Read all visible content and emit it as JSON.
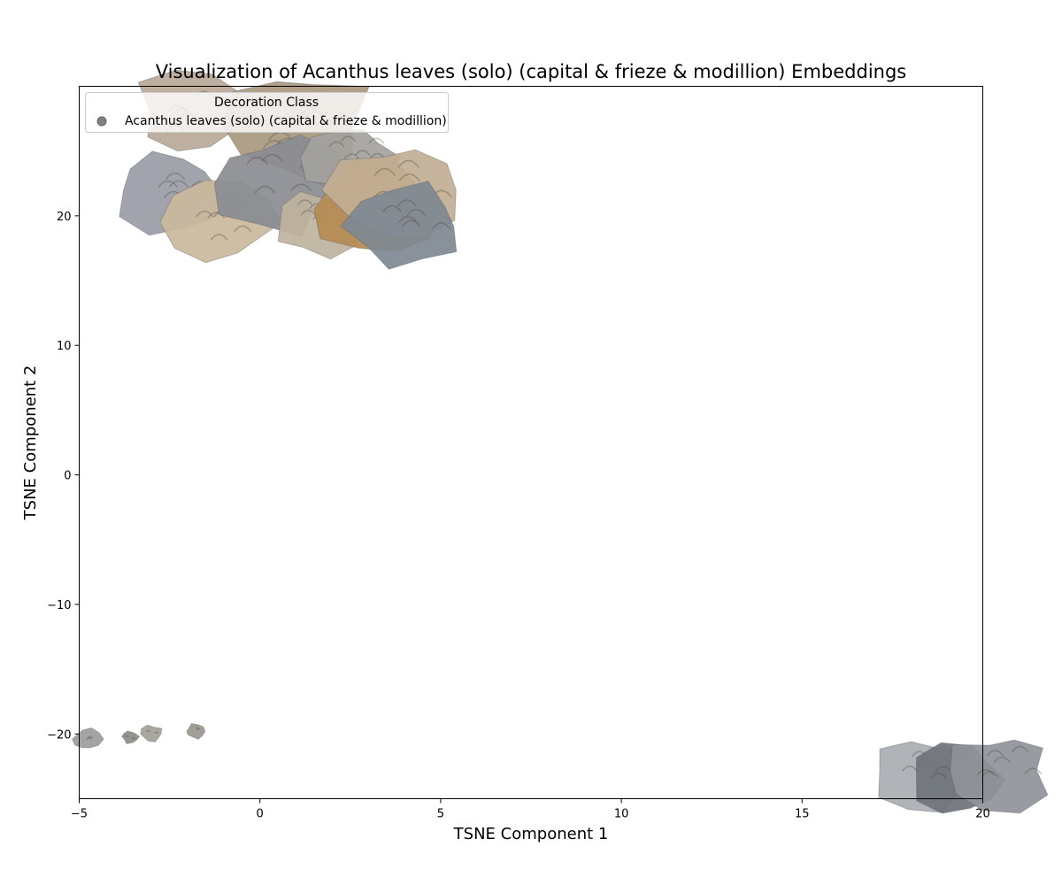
{
  "chart_data": {
    "type": "scatter",
    "title": "Visualization of Acanthus leaves (solo) (capital & frieze & modillion) Embeddings",
    "xlabel": "TSNE Component 1",
    "ylabel": "TSNE Component 2",
    "xlim": [
      -5,
      20
    ],
    "ylim": [
      -25,
      30
    ],
    "xticks": [
      -5,
      0,
      5,
      10,
      15,
      20
    ],
    "xtick_labels": [
      "−5",
      "0",
      "5",
      "10",
      "15",
      "20"
    ],
    "yticks": [
      -20,
      -10,
      0,
      10,
      20
    ],
    "ytick_labels": [
      "−20",
      "−10",
      "0",
      "10",
      "20"
    ],
    "grid": false,
    "legend": {
      "title": "Decoration Class",
      "placement": "top-left",
      "entries": [
        "Acanthus leaves (solo) (capital & frieze & modillion)"
      ]
    },
    "marker_style": "image-thumbnails",
    "series": [
      {
        "name": "Acanthus leaves (solo) (capital & frieze & modillion)",
        "color": "#808080",
        "points": [
          {
            "x": -1.8,
            "y": 28.0,
            "tone": "#b8a898"
          },
          {
            "x": 1.0,
            "y": 27.0,
            "tone": "#a89880"
          },
          {
            "x": -2.5,
            "y": 22.0,
            "tone": "#9a9ca6"
          },
          {
            "x": -1.0,
            "y": 19.5,
            "tone": "#c9b89c"
          },
          {
            "x": 0.5,
            "y": 22.5,
            "tone": "#8a8c92"
          },
          {
            "x": 1.5,
            "y": 19.5,
            "tone": "#bfb39f"
          },
          {
            "x": 2.5,
            "y": 24.5,
            "tone": "#a4a29e"
          },
          {
            "x": 3.2,
            "y": 20.5,
            "tone": "#b48a52"
          },
          {
            "x": 3.8,
            "y": 22.0,
            "tone": "#c2ae94"
          },
          {
            "x": 4.1,
            "y": 19.2,
            "tone": "#7f8893"
          },
          {
            "x": -3.6,
            "y": -20.2,
            "tone": "#8e8a84"
          },
          {
            "x": -3.0,
            "y": -20.0,
            "tone": "#a39f97"
          },
          {
            "x": -1.8,
            "y": -19.8,
            "tone": "#9a968f"
          },
          {
            "x": -4.8,
            "y": -20.4,
            "tone": "#9c9c9c"
          },
          {
            "x": 18.4,
            "y": -23.0,
            "tone": "#a9acb2"
          },
          {
            "x": 19.3,
            "y": -23.5,
            "tone": "#6f737a"
          },
          {
            "x": 20.5,
            "y": -22.8,
            "tone": "#8f9399"
          }
        ]
      }
    ]
  }
}
